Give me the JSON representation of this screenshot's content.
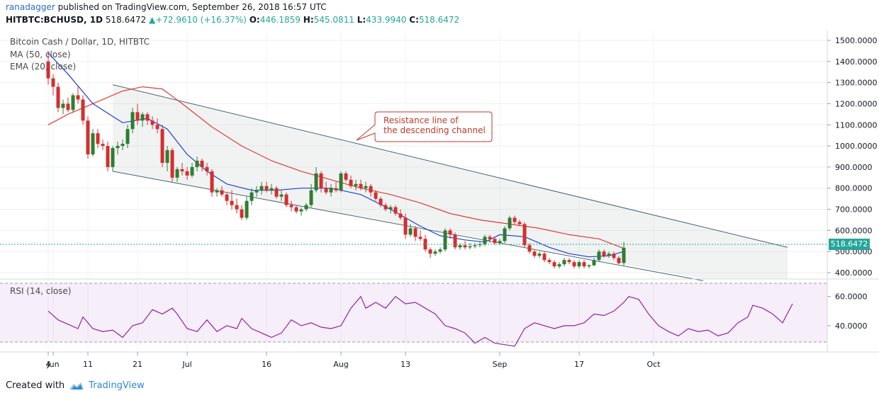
{
  "header": {
    "user": "ranadagger",
    "published": "published on TradingView.com, September 26, 2018 16:57 UTC"
  },
  "ohlc": {
    "symbol": "HITBTC:BCHUSD, 1D",
    "last": "518.6472",
    "change": "+72.9610 (+16.37%)",
    "o_label": "O:",
    "o": "446.1859",
    "h_label": "H:",
    "h": "545.0811",
    "l_label": "L:",
    "l": "433.9940",
    "c_label": "C:",
    "c": "518.6472"
  },
  "legend": {
    "title": "Bitcoin Cash / Dollar, 1D, HITBTC",
    "ma": "MA (50, close)",
    "ema": "EMA (20, close)",
    "rsi": "RSI (14, close)"
  },
  "annotation": {
    "line1": "Resistance line of",
    "line2": "the descending channel"
  },
  "price_badge": "518.6472",
  "footer": {
    "created": "Created with",
    "brand": "TradingView"
  },
  "colors": {
    "up": "#26a69a",
    "down": "#ef5350",
    "candle_up": "#2e7d32",
    "candle_down": "#d32f2f",
    "ma": "#e53935",
    "ema": "#1e3fd6",
    "rsi": "#8e24aa",
    "channel": "#4a6470",
    "annotation": "#c0392b"
  },
  "chart_data": {
    "type": "candlestick",
    "title": "Bitcoin Cash / Dollar, 1D, HITBTC",
    "price_axis": {
      "ticks": [
        400,
        500,
        600,
        700,
        800,
        900,
        1000,
        1100,
        1200,
        1300,
        1400,
        1500
      ],
      "tick_labels": [
        "400.0000",
        "500.0000",
        "600.0000",
        "700.0000",
        "800.0000",
        "900.0000",
        "1000.0000",
        "1100.0000",
        "1200.0000",
        "1300.0000",
        "1400.0000",
        "1500.0000"
      ],
      "ylim": [
        370,
        1530
      ]
    },
    "rsi_axis": {
      "ticks": [
        40,
        60
      ],
      "tick_labels": [
        "40.0000",
        "60.0000"
      ],
      "ylim": [
        22,
        72
      ],
      "bands": [
        30,
        70
      ]
    },
    "x_axis": {
      "tick_labels": [
        "4",
        "Jun",
        "11",
        "21",
        "Jul",
        "16",
        "Aug",
        "13",
        "Sep",
        "17",
        "Oct"
      ],
      "tick_days": [
        -1,
        0,
        7,
        17,
        27,
        43,
        58,
        71,
        90,
        106,
        121
      ],
      "day0": "2018-05-25 (1 Jun is day 7)"
    },
    "candles": [
      [
        1400,
        1450,
        1290,
        1320
      ],
      [
        1320,
        1340,
        1240,
        1280
      ],
      [
        1280,
        1300,
        1160,
        1180
      ],
      [
        1180,
        1220,
        1150,
        1200
      ],
      [
        1200,
        1230,
        1160,
        1170
      ],
      [
        1170,
        1250,
        1160,
        1240
      ],
      [
        1240,
        1280,
        1200,
        1220
      ],
      [
        1220,
        1240,
        1100,
        1120
      ],
      [
        1120,
        1140,
        940,
        960
      ],
      [
        960,
        1080,
        950,
        1060
      ],
      [
        1060,
        1080,
        990,
        1010
      ],
      [
        1010,
        1030,
        980,
        1000
      ],
      [
        1000,
        1020,
        880,
        900
      ],
      [
        900,
        1000,
        880,
        990
      ],
      [
        990,
        1020,
        960,
        1000
      ],
      [
        1000,
        1030,
        980,
        1010
      ],
      [
        1010,
        1100,
        990,
        1080
      ],
      [
        1080,
        1180,
        1060,
        1160
      ],
      [
        1160,
        1200,
        1100,
        1120
      ],
      [
        1120,
        1160,
        1090,
        1150
      ],
      [
        1150,
        1160,
        1100,
        1120
      ],
      [
        1120,
        1140,
        1080,
        1100
      ],
      [
        1100,
        1130,
        1060,
        1080
      ],
      [
        1080,
        1100,
        900,
        920
      ],
      [
        920,
        1000,
        880,
        980
      ],
      [
        980,
        990,
        830,
        850
      ],
      [
        850,
        900,
        830,
        890
      ],
      [
        890,
        920,
        860,
        880
      ],
      [
        880,
        900,
        840,
        860
      ],
      [
        860,
        920,
        850,
        900
      ],
      [
        900,
        950,
        880,
        930
      ],
      [
        930,
        940,
        880,
        900
      ],
      [
        900,
        920,
        860,
        880
      ],
      [
        880,
        890,
        760,
        780
      ],
      [
        780,
        800,
        760,
        790
      ],
      [
        790,
        810,
        760,
        770
      ],
      [
        770,
        780,
        720,
        740
      ],
      [
        740,
        790,
        700,
        720
      ],
      [
        720,
        750,
        680,
        700
      ],
      [
        700,
        720,
        650,
        660
      ],
      [
        660,
        760,
        650,
        740
      ],
      [
        740,
        800,
        720,
        780
      ],
      [
        780,
        810,
        760,
        790
      ],
      [
        790,
        830,
        770,
        810
      ],
      [
        810,
        830,
        780,
        790
      ],
      [
        790,
        820,
        770,
        800
      ],
      [
        800,
        810,
        750,
        760
      ],
      [
        760,
        790,
        740,
        770
      ],
      [
        770,
        780,
        710,
        720
      ],
      [
        720,
        740,
        690,
        710
      ],
      [
        710,
        720,
        680,
        690
      ],
      [
        690,
        710,
        670,
        700
      ],
      [
        700,
        730,
        690,
        720
      ],
      [
        720,
        820,
        710,
        790
      ],
      [
        790,
        900,
        780,
        870
      ],
      [
        870,
        880,
        780,
        800
      ],
      [
        800,
        830,
        770,
        780
      ],
      [
        780,
        820,
        760,
        800
      ],
      [
        800,
        830,
        780,
        790
      ],
      [
        790,
        880,
        780,
        870
      ],
      [
        870,
        880,
        830,
        840
      ],
      [
        840,
        860,
        800,
        810
      ],
      [
        810,
        840,
        790,
        820
      ],
      [
        820,
        840,
        790,
        800
      ],
      [
        800,
        830,
        780,
        810
      ],
      [
        810,
        820,
        760,
        780
      ],
      [
        780,
        790,
        740,
        750
      ],
      [
        750,
        760,
        710,
        720
      ],
      [
        720,
        730,
        690,
        700
      ],
      [
        700,
        720,
        680,
        710
      ],
      [
        710,
        720,
        670,
        680
      ],
      [
        680,
        700,
        650,
        660
      ],
      [
        660,
        680,
        560,
        580
      ],
      [
        580,
        630,
        570,
        610
      ],
      [
        610,
        620,
        550,
        570
      ],
      [
        570,
        600,
        550,
        560
      ],
      [
        560,
        580,
        500,
        510
      ],
      [
        510,
        520,
        470,
        490
      ],
      [
        490,
        510,
        480,
        500
      ],
      [
        500,
        520,
        490,
        510
      ],
      [
        510,
        610,
        500,
        600
      ],
      [
        600,
        610,
        560,
        580
      ],
      [
        580,
        590,
        510,
        520
      ],
      [
        520,
        540,
        510,
        530
      ],
      [
        530,
        550,
        510,
        520
      ],
      [
        520,
        540,
        510,
        525
      ],
      [
        525,
        540,
        515,
        530
      ],
      [
        530,
        550,
        520,
        535
      ],
      [
        535,
        580,
        525,
        570
      ],
      [
        570,
        580,
        540,
        560
      ],
      [
        560,
        570,
        530,
        540
      ],
      [
        540,
        560,
        530,
        550
      ],
      [
        550,
        620,
        540,
        610
      ],
      [
        610,
        670,
        600,
        660
      ],
      [
        660,
        670,
        630,
        640
      ],
      [
        640,
        650,
        620,
        630
      ],
      [
        630,
        640,
        520,
        530
      ],
      [
        530,
        540,
        490,
        500
      ],
      [
        500,
        510,
        470,
        480
      ],
      [
        480,
        500,
        470,
        490
      ],
      [
        490,
        500,
        450,
        460
      ],
      [
        460,
        470,
        440,
        450
      ],
      [
        450,
        460,
        420,
        430
      ],
      [
        430,
        450,
        420,
        440
      ],
      [
        440,
        470,
        430,
        460
      ],
      [
        460,
        470,
        440,
        450
      ],
      [
        450,
        460,
        420,
        430
      ],
      [
        430,
        460,
        420,
        450
      ],
      [
        450,
        460,
        420,
        430
      ],
      [
        430,
        440,
        420,
        435
      ],
      [
        435,
        470,
        430,
        460
      ],
      [
        460,
        510,
        450,
        500
      ],
      [
        500,
        510,
        470,
        480
      ],
      [
        480,
        500,
        470,
        490
      ],
      [
        490,
        500,
        460,
        470
      ],
      [
        470,
        480,
        440,
        445
      ],
      [
        446,
        545,
        434,
        518
      ]
    ],
    "ma50": [
      [
        -1,
        1100
      ],
      [
        3,
        1150
      ],
      [
        8,
        1200
      ],
      [
        14,
        1260
      ],
      [
        18,
        1280
      ],
      [
        22,
        1270
      ],
      [
        26,
        1200
      ],
      [
        32,
        1090
      ],
      [
        38,
        1000
      ],
      [
        44,
        930
      ],
      [
        50,
        880
      ],
      [
        56,
        840
      ],
      [
        62,
        800
      ],
      [
        68,
        770
      ],
      [
        74,
        730
      ],
      [
        80,
        680
      ],
      [
        86,
        650
      ],
      [
        92,
        630
      ],
      [
        98,
        610
      ],
      [
        104,
        580
      ],
      [
        110,
        560
      ],
      [
        115,
        515
      ]
    ],
    "ema20": [
      [
        -1,
        1440
      ],
      [
        3,
        1340
      ],
      [
        8,
        1200
      ],
      [
        14,
        1110
      ],
      [
        19,
        1130
      ],
      [
        23,
        1080
      ],
      [
        27,
        960
      ],
      [
        31,
        880
      ],
      [
        35,
        820
      ],
      [
        40,
        790
      ],
      [
        45,
        790
      ],
      [
        50,
        800
      ],
      [
        56,
        800
      ],
      [
        62,
        770
      ],
      [
        68,
        700
      ],
      [
        74,
        620
      ],
      [
        78,
        575
      ],
      [
        83,
        555
      ],
      [
        87,
        545
      ],
      [
        90,
        580
      ],
      [
        95,
        570
      ],
      [
        100,
        520
      ],
      [
        104,
        490
      ],
      [
        108,
        475
      ],
      [
        112,
        480
      ],
      [
        115,
        500
      ]
    ],
    "rsi": [
      [
        -1,
        50
      ],
      [
        1,
        44
      ],
      [
        3,
        41
      ],
      [
        5,
        38
      ],
      [
        6,
        46
      ],
      [
        8,
        38
      ],
      [
        10,
        36
      ],
      [
        12,
        37
      ],
      [
        14,
        32
      ],
      [
        16,
        40
      ],
      [
        18,
        42
      ],
      [
        20,
        51
      ],
      [
        22,
        48
      ],
      [
        24,
        52
      ],
      [
        25,
        48
      ],
      [
        27,
        38
      ],
      [
        29,
        36
      ],
      [
        31,
        44
      ],
      [
        33,
        36
      ],
      [
        35,
        40
      ],
      [
        37,
        38
      ],
      [
        38,
        45
      ],
      [
        40,
        38
      ],
      [
        42,
        35
      ],
      [
        44,
        32
      ],
      [
        46,
        35
      ],
      [
        48,
        44
      ],
      [
        50,
        40
      ],
      [
        52,
        42
      ],
      [
        54,
        39
      ],
      [
        56,
        38
      ],
      [
        58,
        40
      ],
      [
        60,
        52
      ],
      [
        62,
        60
      ],
      [
        63,
        52
      ],
      [
        65,
        56
      ],
      [
        67,
        52
      ],
      [
        69,
        60
      ],
      [
        71,
        55
      ],
      [
        73,
        56
      ],
      [
        75,
        52
      ],
      [
        77,
        48
      ],
      [
        79,
        40
      ],
      [
        81,
        38
      ],
      [
        83,
        35
      ],
      [
        85,
        28
      ],
      [
        87,
        32
      ],
      [
        89,
        28
      ],
      [
        91,
        27
      ],
      [
        93,
        26
      ],
      [
        95,
        38
      ],
      [
        97,
        42
      ],
      [
        99,
        40
      ],
      [
        101,
        38
      ],
      [
        103,
        40
      ],
      [
        105,
        40
      ],
      [
        107,
        42
      ],
      [
        109,
        48
      ],
      [
        111,
        47
      ],
      [
        113,
        50
      ],
      [
        115,
        56
      ],
      [
        116,
        60
      ],
      [
        118,
        58
      ],
      [
        120,
        48
      ],
      [
        122,
        40
      ],
      [
        124,
        36
      ],
      [
        126,
        33
      ],
      [
        128,
        38
      ],
      [
        130,
        36
      ],
      [
        132,
        37
      ],
      [
        134,
        33
      ],
      [
        136,
        35
      ],
      [
        138,
        42
      ],
      [
        140,
        46
      ],
      [
        141,
        54
      ],
      [
        143,
        52
      ],
      [
        145,
        48
      ],
      [
        147,
        42
      ],
      [
        149,
        55
      ]
    ],
    "channel_upper": [
      [
        12,
        1290
      ],
      [
        148,
        520
      ]
    ],
    "channel_lower": [
      [
        12,
        880
      ],
      [
        131,
        362
      ]
    ]
  }
}
